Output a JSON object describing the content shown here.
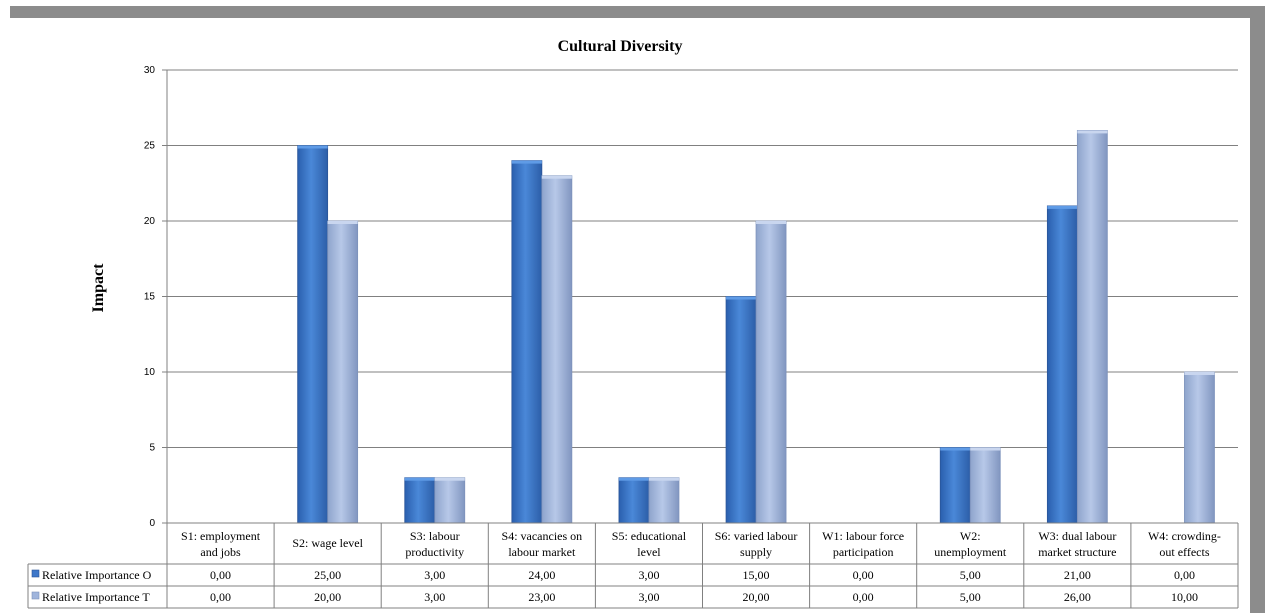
{
  "chart_data": {
    "type": "bar",
    "title": "Cultural Diversity",
    "ylabel": "Impact",
    "xlabel": "",
    "ylim": [
      0,
      30
    ],
    "yticks": [
      0,
      5,
      10,
      15,
      20,
      25,
      30
    ],
    "grid": true,
    "legend_position": "bottom (data table)",
    "categories": [
      [
        "S1:  employment",
        "and jobs"
      ],
      [
        "S2:  wage level"
      ],
      [
        "S3:  labour",
        "productivity"
      ],
      [
        "S4:  vacancies on",
        "labour market"
      ],
      [
        "S5:  educational",
        "level"
      ],
      [
        "S6:  varied labour",
        "supply"
      ],
      [
        "W1:  labour force",
        "participation"
      ],
      [
        "W2:",
        "unemployment"
      ],
      [
        "W3:  dual labour",
        "market structure"
      ],
      [
        "W4:  crowding-",
        "out effects"
      ]
    ],
    "series": [
      {
        "name": "Relative Importance O",
        "color": "#3d77c9",
        "values": [
          0,
          25,
          3,
          24,
          3,
          15,
          0,
          5,
          21,
          0
        ],
        "labels": [
          "0,00",
          "25,00",
          "3,00",
          "24,00",
          "3,00",
          "15,00",
          "0,00",
          "5,00",
          "21,00",
          "0,00"
        ]
      },
      {
        "name": "Relative Importance T",
        "color": "#9fb4dc",
        "values": [
          0,
          20,
          3,
          23,
          3,
          20,
          0,
          5,
          26,
          10
        ],
        "labels": [
          "0,00",
          "20,00",
          "3,00",
          "23,00",
          "3,00",
          "20,00",
          "0,00",
          "5,00",
          "26,00",
          "10,00"
        ]
      }
    ]
  }
}
